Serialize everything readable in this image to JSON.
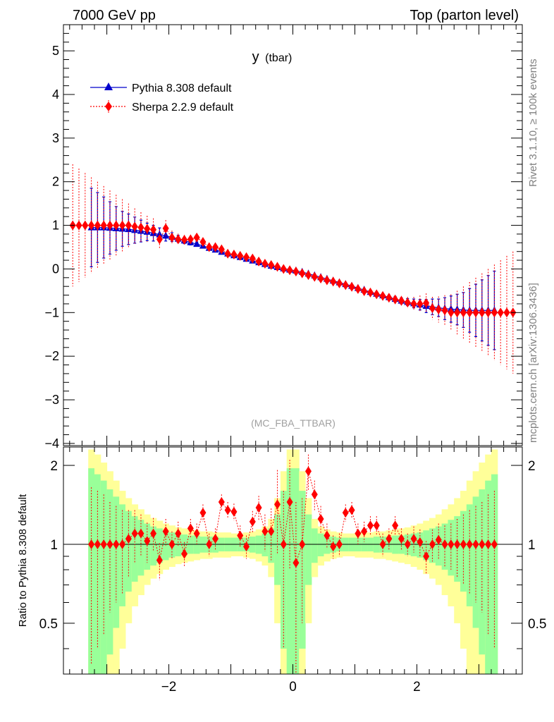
{
  "header": {
    "left": "7000 GeV pp",
    "right": "Top (parton level)"
  },
  "side": {
    "rivet": "Rivet 3.1.10, ≥ 100k events",
    "source": "mcplots.cern.ch [arXiv:1306.3436]"
  },
  "colors": {
    "pythia": "#0000cc",
    "sherpa": "#ff0000",
    "band_inner": "#99ff99",
    "band_outer": "#ffff99"
  },
  "chart_data": [
    {
      "type": "scatter",
      "title": "y",
      "title_suffix": "(tbar)",
      "analysis": "(MC_FBA_TTBAR)",
      "xlim": [
        -3.7,
        3.7
      ],
      "ylim": [
        -4.05,
        5.6
      ],
      "yticks": [
        -4,
        -3,
        -2,
        -1,
        0,
        1,
        2,
        3,
        4,
        5
      ],
      "xticks": [
        -2,
        0,
        2
      ],
      "legend_placement": "top-left",
      "series": [
        {
          "name": "Pythia 8.308 default",
          "marker": "triangle",
          "x": [
            -3.25,
            -3.15,
            -3.05,
            -2.95,
            -2.85,
            -2.75,
            -2.65,
            -2.55,
            -2.45,
            -2.35,
            -2.25,
            -2.15,
            -2.05,
            -1.95,
            -1.85,
            -1.75,
            -1.65,
            -1.55,
            -1.45,
            -1.35,
            -1.25,
            -1.15,
            -1.05,
            -0.95,
            -0.85,
            -0.75,
            -0.65,
            -0.55,
            -0.45,
            -0.35,
            -0.25,
            -0.15,
            -0.05,
            0.05,
            0.15,
            0.25,
            0.35,
            0.45,
            0.55,
            0.65,
            0.75,
            0.85,
            0.95,
            1.05,
            1.15,
            1.25,
            1.35,
            1.45,
            1.55,
            1.65,
            1.75,
            1.85,
            1.95,
            2.05,
            2.15,
            2.25,
            2.35,
            2.45,
            2.55,
            2.65,
            2.75,
            2.85,
            2.95,
            3.05,
            3.15,
            3.25
          ],
          "y": [
            0.95,
            0.95,
            0.95,
            0.94,
            0.93,
            0.92,
            0.91,
            0.89,
            0.87,
            0.85,
            0.82,
            0.79,
            0.76,
            0.73,
            0.69,
            0.65,
            0.61,
            0.57,
            0.53,
            0.48,
            0.44,
            0.39,
            0.35,
            0.31,
            0.27,
            0.23,
            0.19,
            0.15,
            0.11,
            0.07,
            0.04,
            0.01,
            -0.02,
            -0.04,
            -0.07,
            -0.11,
            -0.15,
            -0.19,
            -0.23,
            -0.27,
            -0.31,
            -0.35,
            -0.39,
            -0.44,
            -0.48,
            -0.53,
            -0.57,
            -0.61,
            -0.65,
            -0.69,
            -0.73,
            -0.76,
            -0.79,
            -0.82,
            -0.85,
            -0.87,
            -0.89,
            -0.91,
            -0.92,
            -0.93,
            -0.94,
            -0.95,
            -0.95,
            -0.95,
            -0.95,
            -0.95
          ],
          "err": [
            0.9,
            0.8,
            0.7,
            0.6,
            0.5,
            0.4,
            0.35,
            0.3,
            0.25,
            0.2,
            0.18,
            0.15,
            0.12,
            0.1,
            0.08,
            0.07,
            0.06,
            0.05,
            0.04,
            0.04,
            0.03,
            0.03,
            0.03,
            0.03,
            0.02,
            0.02,
            0.02,
            0.02,
            0.02,
            0.02,
            0.02,
            0.02,
            0.02,
            0.02,
            0.02,
            0.02,
            0.02,
            0.02,
            0.02,
            0.02,
            0.02,
            0.02,
            0.03,
            0.03,
            0.03,
            0.03,
            0.04,
            0.04,
            0.05,
            0.06,
            0.07,
            0.08,
            0.1,
            0.12,
            0.15,
            0.18,
            0.2,
            0.25,
            0.3,
            0.35,
            0.4,
            0.5,
            0.6,
            0.7,
            0.8,
            0.9
          ]
        },
        {
          "name": "Sherpa 2.2.9 default",
          "marker": "diamond",
          "x": [
            -3.55,
            -3.45,
            -3.35,
            -3.25,
            -3.15,
            -3.05,
            -2.95,
            -2.85,
            -2.75,
            -2.65,
            -2.55,
            -2.45,
            -2.35,
            -2.25,
            -2.15,
            -2.05,
            -1.95,
            -1.85,
            -1.75,
            -1.65,
            -1.55,
            -1.45,
            -1.35,
            -1.25,
            -1.15,
            -1.05,
            -0.95,
            -0.85,
            -0.75,
            -0.65,
            -0.55,
            -0.45,
            -0.35,
            -0.25,
            -0.15,
            -0.05,
            0.05,
            0.15,
            0.25,
            0.35,
            0.45,
            0.55,
            0.65,
            0.75,
            0.85,
            0.95,
            1.05,
            1.15,
            1.25,
            1.35,
            1.45,
            1.55,
            1.65,
            1.75,
            1.85,
            1.95,
            2.05,
            2.15,
            2.25,
            2.35,
            2.45,
            2.55,
            2.65,
            2.75,
            2.85,
            2.95,
            3.05,
            3.15,
            3.25,
            3.35,
            3.45,
            3.55
          ],
          "y": [
            1.0,
            1.0,
            1.0,
            1.0,
            1.0,
            1.0,
            1.0,
            1.0,
            1.0,
            1.0,
            0.97,
            0.95,
            0.92,
            0.9,
            0.68,
            0.93,
            0.72,
            0.68,
            0.67,
            0.68,
            0.72,
            0.62,
            0.5,
            0.5,
            0.45,
            0.35,
            0.33,
            0.3,
            0.27,
            0.24,
            0.17,
            0.12,
            0.09,
            0.05,
            0.0,
            -0.03,
            -0.06,
            -0.1,
            -0.14,
            -0.18,
            -0.22,
            -0.26,
            -0.29,
            -0.33,
            -0.37,
            -0.41,
            -0.46,
            -0.51,
            -0.54,
            -0.58,
            -0.62,
            -0.66,
            -0.7,
            -0.73,
            -0.77,
            -0.8,
            -0.8,
            -0.78,
            -0.9,
            -0.93,
            -0.95,
            -1.0,
            -1.0,
            -1.0,
            -1.0,
            -1.0,
            -1.0,
            -1.0,
            -1.0,
            -1.0,
            -1.0,
            -1.0
          ],
          "err": [
            1.4,
            1.3,
            1.2,
            1.1,
            1.0,
            0.9,
            0.8,
            0.7,
            0.6,
            0.5,
            0.42,
            0.35,
            0.3,
            0.26,
            0.22,
            0.19,
            0.16,
            0.13,
            0.11,
            0.09,
            0.08,
            0.07,
            0.06,
            0.05,
            0.04,
            0.04,
            0.04,
            0.03,
            0.03,
            0.03,
            0.03,
            0.03,
            0.03,
            0.03,
            0.03,
            0.03,
            0.03,
            0.03,
            0.03,
            0.03,
            0.03,
            0.03,
            0.03,
            0.03,
            0.03,
            0.04,
            0.04,
            0.04,
            0.05,
            0.06,
            0.07,
            0.08,
            0.09,
            0.11,
            0.13,
            0.16,
            0.19,
            0.22,
            0.26,
            0.3,
            0.35,
            0.42,
            0.5,
            0.6,
            0.7,
            0.8,
            0.9,
            1.0,
            1.1,
            1.2,
            1.3,
            1.4
          ]
        }
      ]
    },
    {
      "type": "scatter",
      "ylabel": "Ratio to Pythia 8.308 default",
      "xlim": [
        -3.7,
        3.7
      ],
      "ylim": [
        0.32,
        2.35
      ],
      "log_y": true,
      "yticks": [
        0.5,
        1,
        2
      ],
      "xticks": [
        -2,
        0,
        2
      ],
      "reference": 1,
      "band_x": [
        -3.25,
        -3.15,
        -3.05,
        -2.95,
        -2.85,
        -2.75,
        -2.65,
        -2.55,
        -2.45,
        -2.35,
        -2.25,
        -2.15,
        -2.05,
        -1.95,
        -1.85,
        -1.75,
        -1.65,
        -1.55,
        -1.45,
        -1.35,
        -1.25,
        -1.15,
        -1.05,
        -0.95,
        -0.85,
        -0.75,
        -0.65,
        -0.55,
        -0.45,
        -0.35,
        -0.25,
        -0.15,
        -0.05,
        0.05,
        0.15,
        0.25,
        0.35,
        0.45,
        0.55,
        0.65,
        0.75,
        0.85,
        0.95,
        1.05,
        1.15,
        1.25,
        1.35,
        1.45,
        1.55,
        1.65,
        1.75,
        1.85,
        1.95,
        2.05,
        2.15,
        2.25,
        2.35,
        2.45,
        2.55,
        2.65,
        2.75,
        2.85,
        2.95,
        3.05,
        3.15,
        3.25
      ],
      "band_inner_half": [
        0.95,
        0.85,
        0.75,
        0.62,
        0.52,
        0.42,
        0.34,
        0.28,
        0.24,
        0.2,
        0.17,
        0.15,
        0.13,
        0.11,
        0.1,
        0.09,
        0.08,
        0.08,
        0.07,
        0.07,
        0.07,
        0.06,
        0.06,
        0.06,
        0.06,
        0.06,
        0.07,
        0.08,
        0.1,
        0.15,
        0.3,
        0.6,
        0.95,
        0.95,
        0.6,
        0.3,
        0.15,
        0.1,
        0.08,
        0.07,
        0.06,
        0.06,
        0.06,
        0.06,
        0.06,
        0.06,
        0.07,
        0.07,
        0.07,
        0.08,
        0.08,
        0.09,
        0.1,
        0.11,
        0.13,
        0.15,
        0.17,
        0.2,
        0.24,
        0.28,
        0.34,
        0.42,
        0.52,
        0.62,
        0.75,
        0.85
      ],
      "band_outer_half": [
        1.3,
        1.2,
        1.05,
        0.9,
        0.75,
        0.6,
        0.5,
        0.42,
        0.36,
        0.3,
        0.26,
        0.23,
        0.2,
        0.18,
        0.16,
        0.15,
        0.14,
        0.13,
        0.12,
        0.12,
        0.11,
        0.11,
        0.11,
        0.1,
        0.1,
        0.11,
        0.12,
        0.14,
        0.17,
        0.25,
        0.5,
        0.9,
        1.3,
        1.3,
        0.9,
        0.5,
        0.25,
        0.17,
        0.14,
        0.12,
        0.11,
        0.1,
        0.1,
        0.11,
        0.11,
        0.11,
        0.12,
        0.12,
        0.13,
        0.14,
        0.15,
        0.16,
        0.18,
        0.2,
        0.23,
        0.26,
        0.3,
        0.36,
        0.42,
        0.5,
        0.6,
        0.75,
        0.9,
        1.05,
        1.2,
        1.3
      ],
      "series": [
        {
          "name": "Sherpa 2.2.9 default",
          "marker": "diamond",
          "x": [
            -3.25,
            -3.15,
            -3.05,
            -2.95,
            -2.85,
            -2.75,
            -2.65,
            -2.55,
            -2.45,
            -2.35,
            -2.25,
            -2.15,
            -2.05,
            -1.95,
            -1.85,
            -1.75,
            -1.65,
            -1.55,
            -1.45,
            -1.35,
            -1.25,
            -1.15,
            -1.05,
            -0.95,
            -0.85,
            -0.75,
            -0.65,
            -0.55,
            -0.45,
            -0.35,
            -0.25,
            -0.15,
            -0.05,
            0.05,
            0.15,
            0.25,
            0.35,
            0.45,
            0.55,
            0.65,
            0.75,
            0.85,
            0.95,
            1.05,
            1.15,
            1.25,
            1.35,
            1.45,
            1.55,
            1.65,
            1.75,
            1.85,
            1.95,
            2.05,
            2.15,
            2.25,
            2.35,
            2.45,
            2.55,
            2.65,
            2.75,
            2.85,
            2.95,
            3.05,
            3.15,
            3.25
          ],
          "y": [
            1.0,
            1.0,
            1.0,
            1.0,
            1.0,
            1.0,
            1.05,
            1.1,
            1.1,
            1.03,
            1.1,
            0.87,
            1.12,
            1.0,
            1.1,
            0.92,
            1.15,
            1.1,
            1.32,
            1.0,
            1.05,
            1.45,
            1.35,
            1.33,
            1.08,
            0.98,
            1.22,
            1.38,
            1.12,
            1.12,
            1.42,
            1.0,
            1.45,
            0.85,
            1.0,
            1.9,
            1.55,
            1.25,
            1.08,
            0.98,
            1.0,
            1.32,
            1.35,
            1.1,
            1.12,
            1.18,
            1.18,
            1.0,
            1.05,
            1.18,
            1.05,
            1.0,
            1.05,
            1.02,
            0.9,
            1.0,
            1.04,
            1.0,
            1.0,
            1.0,
            1.0,
            1.0,
            1.0,
            1.0,
            1.0,
            1.0
          ],
          "err": [
            0.65,
            0.6,
            0.55,
            0.45,
            0.4,
            0.35,
            0.3,
            0.25,
            0.2,
            0.18,
            0.16,
            0.14,
            0.13,
            0.12,
            0.12,
            0.1,
            0.1,
            0.1,
            0.1,
            0.1,
            0.1,
            0.1,
            0.1,
            0.1,
            0.1,
            0.1,
            0.12,
            0.15,
            0.18,
            0.25,
            0.5,
            0.6,
            0.65,
            0.6,
            0.5,
            0.3,
            0.2,
            0.15,
            0.12,
            0.1,
            0.1,
            0.1,
            0.1,
            0.1,
            0.1,
            0.1,
            0.1,
            0.1,
            0.1,
            0.1,
            0.1,
            0.1,
            0.12,
            0.12,
            0.13,
            0.14,
            0.16,
            0.18,
            0.2,
            0.25,
            0.3,
            0.35,
            0.4,
            0.45,
            0.55,
            0.6
          ]
        }
      ]
    }
  ]
}
